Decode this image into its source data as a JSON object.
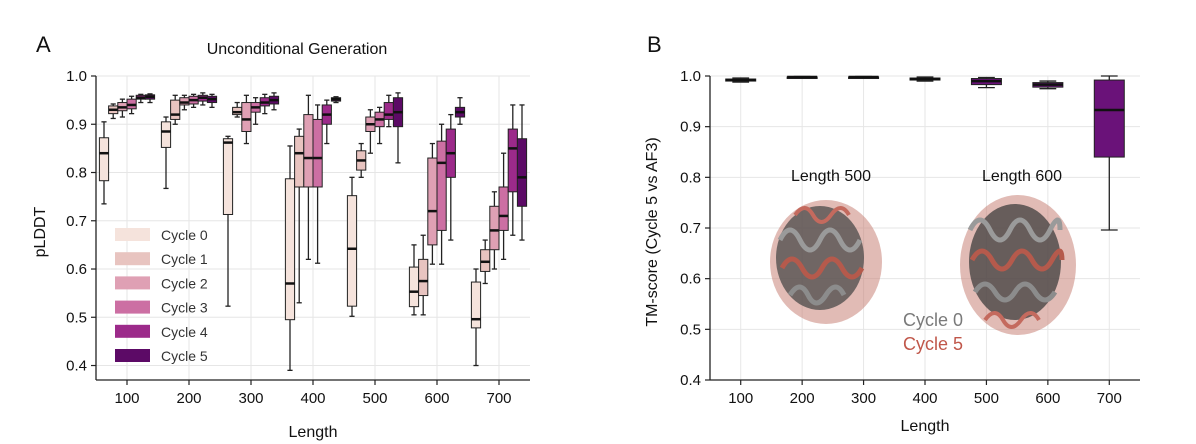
{
  "chart_data": [
    {
      "panel": "A",
      "type": "box",
      "title": "Unconditional Generation",
      "xlabel": "Length",
      "ylabel": "pLDDT",
      "ylim": [
        0.37,
        1.0
      ],
      "yticks": [
        "0.4",
        "0.5",
        "0.6",
        "0.7",
        "0.8",
        "0.9",
        "1.0"
      ],
      "categories": [
        "100",
        "200",
        "300",
        "400",
        "500",
        "600",
        "700"
      ],
      "legend_position": "lower-left",
      "series": [
        {
          "name": "Cycle 0",
          "color": "#f5e3dc",
          "boxes": [
            {
              "min": 0.735,
              "q1": 0.783,
              "median": 0.84,
              "q3": 0.872,
              "max": 0.905
            },
            {
              "min": 0.767,
              "q1": 0.852,
              "median": 0.885,
              "q3": 0.905,
              "max": 0.915
            },
            {
              "min": 0.523,
              "q1": 0.713,
              "median": 0.862,
              "q3": 0.87,
              "max": 0.875
            },
            {
              "min": 0.39,
              "q1": 0.495,
              "median": 0.57,
              "q3": 0.787,
              "max": 0.855
            },
            {
              "min": 0.502,
              "q1": 0.523,
              "median": 0.642,
              "q3": 0.752,
              "max": 0.79
            },
            {
              "min": 0.505,
              "q1": 0.522,
              "median": 0.553,
              "q3": 0.604,
              "max": 0.65
            },
            {
              "min": 0.4,
              "q1": 0.478,
              "median": 0.496,
              "q3": 0.573,
              "max": 0.6
            }
          ]
        },
        {
          "name": "Cycle 1",
          "color": "#e8c4c0",
          "boxes": [
            {
              "min": 0.912,
              "q1": 0.922,
              "median": 0.93,
              "q3": 0.938,
              "max": 0.942
            },
            {
              "min": 0.9,
              "q1": 0.91,
              "median": 0.92,
              "q3": 0.95,
              "max": 0.96
            },
            {
              "min": 0.915,
              "q1": 0.92,
              "median": 0.925,
              "q3": 0.935,
              "max": 0.945
            },
            {
              "min": 0.53,
              "q1": 0.77,
              "median": 0.84,
              "q3": 0.875,
              "max": 0.89
            },
            {
              "min": 0.79,
              "q1": 0.805,
              "median": 0.825,
              "q3": 0.845,
              "max": 0.86
            },
            {
              "min": 0.505,
              "q1": 0.545,
              "median": 0.575,
              "q3": 0.62,
              "max": 0.67
            },
            {
              "min": 0.57,
              "q1": 0.595,
              "median": 0.615,
              "q3": 0.64,
              "max": 0.66
            }
          ]
        },
        {
          "name": "Cycle 2",
          "color": "#dfa0b4",
          "boxes": [
            {
              "min": 0.915,
              "q1": 0.928,
              "median": 0.935,
              "q3": 0.945,
              "max": 0.952
            },
            {
              "min": 0.93,
              "q1": 0.94,
              "median": 0.945,
              "q3": 0.955,
              "max": 0.96
            },
            {
              "min": 0.86,
              "q1": 0.885,
              "median": 0.91,
              "q3": 0.945,
              "max": 0.96
            },
            {
              "min": 0.62,
              "q1": 0.77,
              "median": 0.83,
              "q3": 0.92,
              "max": 0.96
            },
            {
              "min": 0.84,
              "q1": 0.885,
              "median": 0.9,
              "q3": 0.915,
              "max": 0.93
            },
            {
              "min": 0.61,
              "q1": 0.65,
              "median": 0.72,
              "q3": 0.83,
              "max": 0.86
            },
            {
              "min": 0.6,
              "q1": 0.64,
              "median": 0.68,
              "q3": 0.73,
              "max": 0.76
            }
          ]
        },
        {
          "name": "Cycle 3",
          "color": "#cc6fa3",
          "boxes": [
            {
              "min": 0.922,
              "q1": 0.932,
              "median": 0.94,
              "q3": 0.952,
              "max": 0.958
            },
            {
              "min": 0.935,
              "q1": 0.942,
              "median": 0.95,
              "q3": 0.958,
              "max": 0.962
            },
            {
              "min": 0.9,
              "q1": 0.925,
              "median": 0.935,
              "q3": 0.945,
              "max": 0.955
            },
            {
              "min": 0.612,
              "q1": 0.77,
              "median": 0.83,
              "q3": 0.91,
              "max": 0.94
            },
            {
              "min": 0.86,
              "q1": 0.895,
              "median": 0.91,
              "q3": 0.925,
              "max": 0.935
            },
            {
              "min": 0.61,
              "q1": 0.68,
              "median": 0.82,
              "q3": 0.865,
              "max": 0.9
            },
            {
              "min": 0.62,
              "q1": 0.68,
              "median": 0.71,
              "q3": 0.77,
              "max": 0.84
            }
          ]
        },
        {
          "name": "Cycle 4",
          "color": "#9c2a8a",
          "boxes": [
            {
              "min": 0.945,
              "q1": 0.952,
              "median": 0.955,
              "q3": 0.96,
              "max": 0.962
            },
            {
              "min": 0.94,
              "q1": 0.948,
              "median": 0.955,
              "q3": 0.96,
              "max": 0.965
            },
            {
              "min": 0.922,
              "q1": 0.938,
              "median": 0.945,
              "q3": 0.955,
              "max": 0.962
            },
            {
              "min": 0.86,
              "q1": 0.9,
              "median": 0.92,
              "q3": 0.94,
              "max": 0.95
            },
            {
              "min": 0.895,
              "q1": 0.91,
              "median": 0.92,
              "q3": 0.945,
              "max": 0.96
            },
            {
              "min": 0.66,
              "q1": 0.79,
              "median": 0.84,
              "q3": 0.89,
              "max": 0.92
            },
            {
              "min": 0.67,
              "q1": 0.76,
              "median": 0.85,
              "q3": 0.89,
              "max": 0.94
            }
          ]
        },
        {
          "name": "Cycle 5",
          "color": "#5c0a66",
          "boxes": [
            {
              "min": 0.945,
              "q1": 0.952,
              "median": 0.957,
              "q3": 0.961,
              "max": 0.963
            },
            {
              "min": 0.935,
              "q1": 0.945,
              "median": 0.952,
              "q3": 0.958,
              "max": 0.962
            },
            {
              "min": 0.93,
              "q1": 0.942,
              "median": 0.95,
              "q3": 0.958,
              "max": 0.965
            },
            {
              "min": 0.945,
              "q1": 0.948,
              "median": 0.952,
              "q3": 0.955,
              "max": 0.957
            },
            {
              "min": 0.82,
              "q1": 0.895,
              "median": 0.925,
              "q3": 0.955,
              "max": 0.965
            },
            {
              "min": 0.9,
              "q1": 0.915,
              "median": 0.925,
              "q3": 0.935,
              "max": 0.955
            },
            {
              "min": 0.66,
              "q1": 0.73,
              "median": 0.79,
              "q3": 0.87,
              "max": 0.94
            }
          ]
        }
      ]
    },
    {
      "panel": "B",
      "type": "box",
      "title": "",
      "xlabel": "Length",
      "ylabel": "TM-score (Cycle 5 vs AF3)",
      "ylim": [
        0.4,
        1.0
      ],
      "yticks": [
        "0.4",
        "0.5",
        "0.6",
        "0.7",
        "0.8",
        "0.9",
        "1.0"
      ],
      "categories": [
        "100",
        "200",
        "300",
        "400",
        "500",
        "600",
        "700"
      ],
      "color": "#6a1279",
      "boxes": [
        {
          "min": 0.988,
          "q1": 0.99,
          "median": 0.992,
          "q3": 0.994,
          "max": 0.996
        },
        {
          "min": 0.996,
          "q1": 0.997,
          "median": 0.998,
          "q3": 0.998,
          "max": 0.999
        },
        {
          "min": 0.997,
          "q1": 0.997,
          "median": 0.998,
          "q3": 0.998,
          "max": 0.999
        },
        {
          "min": 0.99,
          "q1": 0.992,
          "median": 0.994,
          "q3": 0.996,
          "max": 0.998
        },
        {
          "min": 0.977,
          "q1": 0.983,
          "median": 0.99,
          "q3": 0.995,
          "max": 0.997
        },
        {
          "min": 0.975,
          "q1": 0.978,
          "median": 0.983,
          "q3": 0.987,
          "max": 0.99
        },
        {
          "min": 0.696,
          "q1": 0.84,
          "median": 0.933,
          "q3": 0.992,
          "max": 1.0
        }
      ],
      "annotations": [
        "Length 500",
        "Length 600"
      ],
      "overlay_legend": [
        {
          "label": "Cycle 0",
          "color": "#7a7a7a"
        },
        {
          "label": "Cycle 5",
          "color": "#c0574a"
        }
      ]
    }
  ],
  "panel_letters": [
    "A",
    "B"
  ]
}
